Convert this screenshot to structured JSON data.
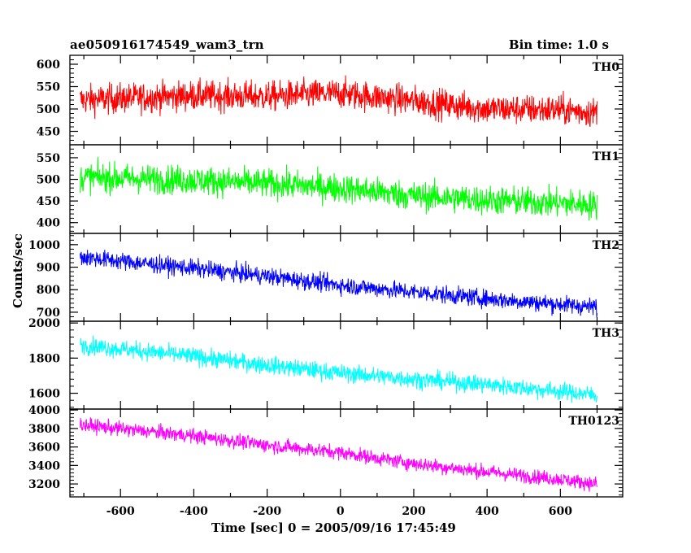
{
  "header": {
    "title": "ae050916174549_wam3_trn",
    "bin_time": "Bin time: 1.0 s"
  },
  "axes": {
    "xlabel": "Time [sec] 0 = 2005/09/16 17:45:49",
    "ylabel": "Counts/sec"
  },
  "chart_data": {
    "type": "line",
    "x_range": [
      -710,
      700
    ],
    "xlim": [
      -738,
      770
    ],
    "x_ticks": [
      -600,
      -400,
      -200,
      0,
      200,
      400,
      600
    ],
    "series": [
      {
        "name": "TH0",
        "color": "#ff0000",
        "ylim": [
          420,
          620
        ],
        "y_ticks": [
          450,
          500,
          550,
          600
        ],
        "mean_start": 523,
        "mean_end": 492,
        "noise": 30,
        "trend": [
          [
            -710,
            520
          ],
          [
            -400,
            530
          ],
          [
            -200,
            528
          ],
          [
            0,
            535
          ],
          [
            200,
            518
          ],
          [
            400,
            500
          ],
          [
            600,
            498
          ],
          [
            700,
            492
          ]
        ]
      },
      {
        "name": "TH1",
        "color": "#00ff00",
        "ylim": [
          375,
          580
        ],
        "y_ticks": [
          400,
          450,
          500,
          550
        ],
        "mean_start": 505,
        "mean_end": 440,
        "noise": 30,
        "trend": [
          [
            -710,
            505
          ],
          [
            -400,
            498
          ],
          [
            -200,
            490
          ],
          [
            0,
            480
          ],
          [
            200,
            462
          ],
          [
            400,
            452
          ],
          [
            600,
            445
          ],
          [
            700,
            440
          ]
        ]
      },
      {
        "name": "TH2",
        "color": "#0000ff",
        "ylim": [
          660,
          1050
        ],
        "y_ticks": [
          700,
          800,
          900,
          1000
        ],
        "noise": 35,
        "trend": [
          [
            -710,
            945
          ],
          [
            -400,
            895
          ],
          [
            -200,
            860
          ],
          [
            0,
            820
          ],
          [
            200,
            790
          ],
          [
            400,
            760
          ],
          [
            600,
            735
          ],
          [
            700,
            722
          ]
        ]
      },
      {
        "name": "TH3",
        "color": "#00ffff",
        "ylim": [
          1510,
          2010
        ],
        "y_ticks": [
          1600,
          1800,
          2000
        ],
        "noise": 45,
        "trend": [
          [
            -710,
            1875
          ],
          [
            -400,
            1810
          ],
          [
            -200,
            1760
          ],
          [
            0,
            1715
          ],
          [
            200,
            1680
          ],
          [
            400,
            1650
          ],
          [
            600,
            1610
          ],
          [
            700,
            1590
          ]
        ]
      },
      {
        "name": "TH0123",
        "color": "#ff00ff",
        "ylim": [
          3060,
          4010
        ],
        "y_ticks": [
          3200,
          3400,
          3600,
          3800,
          4000
        ],
        "noise": 70,
        "trend": [
          [
            -710,
            3840
          ],
          [
            -400,
            3720
          ],
          [
            -200,
            3620
          ],
          [
            0,
            3540
          ],
          [
            200,
            3420
          ],
          [
            400,
            3330
          ],
          [
            600,
            3250
          ],
          [
            700,
            3200
          ]
        ]
      }
    ]
  }
}
